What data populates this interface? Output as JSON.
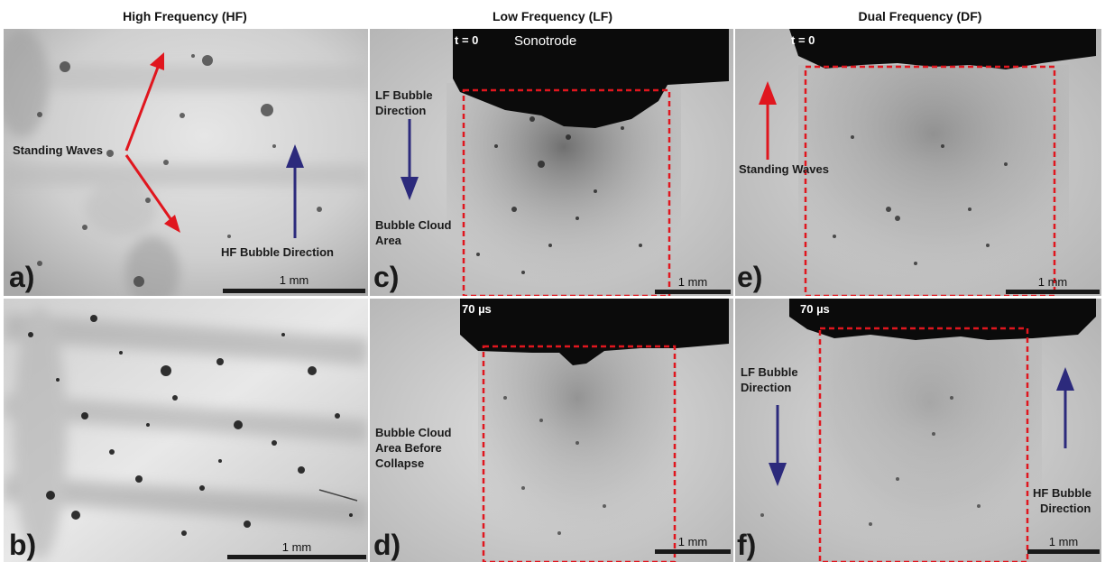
{
  "columns": {
    "hf": "High Frequency (HF)",
    "lf": "Low Frequency (LF)",
    "df": "Dual Frequency (DF)"
  },
  "panels": {
    "a": {
      "letter": "a)",
      "standing_waves": "Standing Waves",
      "hf_direction": "HF Bubble Direction",
      "scale": "1 mm"
    },
    "b": {
      "letter": "b)",
      "scale": "1 mm"
    },
    "c": {
      "letter": "c)",
      "time": "t = 0",
      "sonotrode": "Sonotrode",
      "lf_direction_1": "LF Bubble",
      "lf_direction_2": "Direction",
      "cloud_1": "Bubble Cloud",
      "cloud_2": "Area",
      "scale": "1 mm"
    },
    "d": {
      "letter": "d)",
      "time": "70 µs",
      "cloud_1": "Bubble Cloud",
      "cloud_2": "Area Before",
      "cloud_3": "Collapse",
      "scale": "1 mm"
    },
    "e": {
      "letter": "e)",
      "time": "t = 0",
      "standing_waves": "Standing Waves",
      "scale": "1 mm"
    },
    "f": {
      "letter": "f)",
      "time": "70 µs",
      "lf_direction_1": "LF Bubble",
      "lf_direction_2": "Direction",
      "hf_direction_1": "HF Bubble",
      "hf_direction_2": "Direction",
      "scale": "1 mm"
    }
  },
  "colors": {
    "arrow_red": "#e0161e",
    "arrow_blue": "#2c2a7c",
    "box_red": "#e0161e",
    "sonotrode": "#0b0b0b"
  }
}
